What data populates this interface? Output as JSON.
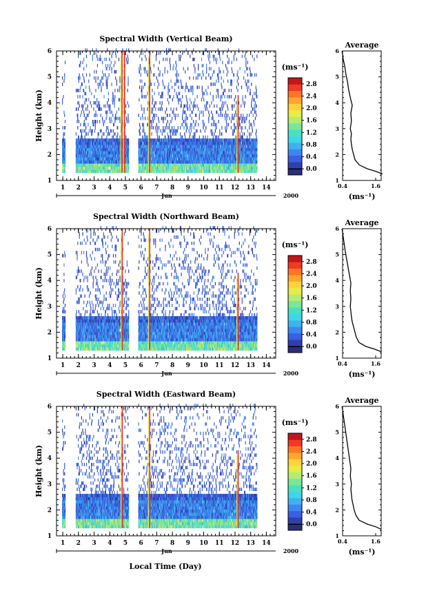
{
  "colormap": [
    "#2b2f7a",
    "#2f3fb0",
    "#3a5fe0",
    "#3d86f0",
    "#3fb2ee",
    "#3fd6e6",
    "#48e0c0",
    "#7be69a",
    "#b5ec6f",
    "#e6ec48",
    "#ffd23a",
    "#ffa62e",
    "#ff7628",
    "#f03a22",
    "#c0171c"
  ],
  "x_unit": "Jun",
  "year": "2000",
  "xlabel_bottom": "Local Time (Day)",
  "panels": [
    {
      "title": "Spectral Width (Vertical Beam)",
      "avg_title": "Average",
      "avg_unit": "(ms⁻¹)",
      "colorbar_unit": "(ms⁻¹)",
      "avg_profile": [
        [
          1.25,
          1.85
        ],
        [
          1.35,
          1.6
        ],
        [
          1.45,
          1.3
        ],
        [
          1.6,
          1.0
        ],
        [
          1.8,
          0.85
        ],
        [
          2.0,
          0.8
        ],
        [
          2.2,
          0.75
        ],
        [
          2.4,
          0.72
        ],
        [
          2.6,
          0.7
        ],
        [
          2.8,
          0.72
        ],
        [
          3.0,
          0.68
        ],
        [
          3.3,
          0.72
        ],
        [
          3.6,
          0.7
        ],
        [
          3.9,
          0.75
        ],
        [
          4.2,
          0.68
        ],
        [
          4.5,
          0.62
        ],
        [
          4.8,
          0.58
        ],
        [
          5.1,
          0.52
        ],
        [
          5.4,
          0.48
        ],
        [
          5.7,
          0.42
        ],
        [
          6.0,
          0.38
        ]
      ]
    },
    {
      "title": "Spectral Width (Northward Beam)",
      "avg_title": "Average",
      "avg_unit": "(ms⁻¹)",
      "colorbar_unit": "(ms⁻¹)",
      "avg_profile": [
        [
          1.25,
          1.8
        ],
        [
          1.35,
          1.55
        ],
        [
          1.45,
          1.25
        ],
        [
          1.6,
          1.0
        ],
        [
          1.8,
          0.9
        ],
        [
          2.0,
          0.85
        ],
        [
          2.2,
          0.8
        ],
        [
          2.4,
          0.75
        ],
        [
          2.6,
          0.72
        ],
        [
          2.8,
          0.7
        ],
        [
          3.0,
          0.68
        ],
        [
          3.3,
          0.7
        ],
        [
          3.6,
          0.68
        ],
        [
          3.9,
          0.7
        ],
        [
          4.2,
          0.65
        ],
        [
          4.5,
          0.6
        ],
        [
          4.8,
          0.55
        ],
        [
          5.1,
          0.5
        ],
        [
          5.4,
          0.46
        ],
        [
          5.7,
          0.42
        ],
        [
          6.0,
          0.38
        ]
      ]
    },
    {
      "title": "Spectral Width (Eastward Beam)",
      "avg_title": "Average",
      "avg_unit": "(ms⁻¹)",
      "colorbar_unit": "(ms⁻¹)",
      "avg_profile": [
        [
          1.25,
          1.8
        ],
        [
          1.35,
          1.6
        ],
        [
          1.45,
          1.3
        ],
        [
          1.6,
          1.0
        ],
        [
          1.8,
          0.88
        ],
        [
          2.0,
          0.82
        ],
        [
          2.2,
          0.78
        ],
        [
          2.4,
          0.74
        ],
        [
          2.6,
          0.72
        ],
        [
          2.8,
          0.7
        ],
        [
          3.0,
          0.72
        ],
        [
          3.3,
          0.68
        ],
        [
          3.6,
          0.7
        ],
        [
          3.9,
          0.66
        ],
        [
          4.2,
          0.62
        ],
        [
          4.5,
          0.58
        ],
        [
          4.8,
          0.54
        ],
        [
          5.1,
          0.5
        ],
        [
          5.4,
          0.46
        ],
        [
          5.7,
          0.42
        ],
        [
          6.0,
          0.38
        ]
      ]
    }
  ],
  "chart_data": [
    {
      "type": "heatmap",
      "title": "Spectral Width (Vertical Beam)",
      "ylabel": "Height (km)",
      "xlabel": "Jun",
      "year": "2000",
      "xlim": [
        0.6,
        14.6
      ],
      "ylim": [
        1,
        6
      ],
      "xticks": [
        "1",
        "2",
        "3",
        "4",
        "5",
        "6",
        "7",
        "8",
        "9",
        "10",
        "11",
        "12",
        "13",
        "14"
      ],
      "yticks": [
        "1",
        "2",
        "3",
        "4",
        "5",
        "6"
      ],
      "colorbar": {
        "unit": "(ms⁻¹)",
        "range": [
          -0.2,
          3.0
        ],
        "ticks": [
          "0.0",
          "0.4",
          "0.8",
          "1.2",
          "1.6",
          "2.0",
          "2.4",
          "2.8"
        ]
      },
      "data_gaps": [
        [
          1.3,
          1.8
        ],
        [
          5.2,
          5.8
        ],
        [
          13.4,
          14.6
        ]
      ],
      "dense_layer_top_km": 2.6,
      "high_width_columns": [
        4.78,
        4.95,
        6.55,
        12.2
      ]
    },
    {
      "type": "line",
      "title": "Average",
      "xlabel": "(ms⁻¹)",
      "xlim": [
        0.4,
        1.8
      ],
      "xticks": [
        "0.4",
        "1.6"
      ],
      "ylim": [
        1,
        6
      ],
      "yticks": [
        "1",
        "2",
        "3",
        "4",
        "5",
        "6"
      ]
    },
    {
      "type": "heatmap",
      "title": "Spectral Width (Northward Beam)",
      "ylabel": "Height (km)",
      "xlabel": "Jun",
      "year": "2000",
      "xlim": [
        0.6,
        14.6
      ],
      "ylim": [
        1,
        6
      ],
      "xticks": [
        "1",
        "2",
        "3",
        "4",
        "5",
        "6",
        "7",
        "8",
        "9",
        "10",
        "11",
        "12",
        "13",
        "14"
      ],
      "yticks": [
        "1",
        "2",
        "3",
        "4",
        "5",
        "6"
      ],
      "colorbar": {
        "unit": "(ms⁻¹)",
        "range": [
          -0.2,
          3.0
        ],
        "ticks": [
          "0.0",
          "0.4",
          "0.8",
          "1.2",
          "1.6",
          "2.0",
          "2.4",
          "2.8"
        ]
      },
      "data_gaps": [
        [
          1.3,
          1.8
        ],
        [
          5.2,
          5.8
        ],
        [
          13.4,
          14.6
        ]
      ],
      "dense_layer_top_km": 2.6,
      "high_width_columns": [
        4.8,
        6.55,
        12.2
      ]
    },
    {
      "type": "line",
      "title": "Average",
      "xlabel": "(ms⁻¹)",
      "xlim": [
        0.4,
        1.8
      ],
      "xticks": [
        "0.4",
        "1.6"
      ],
      "ylim": [
        1,
        6
      ],
      "yticks": [
        "1",
        "2",
        "3",
        "4",
        "5",
        "6"
      ]
    },
    {
      "type": "heatmap",
      "title": "Spectral Width (Eastward Beam)",
      "ylabel": "Height (km)",
      "xlabel": "Local Time (Day)",
      "year": "2000",
      "xlim": [
        0.6,
        14.6
      ],
      "ylim": [
        1,
        6
      ],
      "xticks": [
        "1",
        "2",
        "3",
        "4",
        "5",
        "6",
        "7",
        "8",
        "9",
        "10",
        "11",
        "12",
        "13",
        "14"
      ],
      "yticks": [
        "1",
        "2",
        "3",
        "4",
        "5",
        "6"
      ],
      "colorbar": {
        "unit": "(ms⁻¹)",
        "range": [
          -0.2,
          3.0
        ],
        "ticks": [
          "0.0",
          "0.4",
          "0.8",
          "1.2",
          "1.6",
          "2.0",
          "2.4",
          "2.8"
        ]
      },
      "data_gaps": [
        [
          1.3,
          1.8
        ],
        [
          5.2,
          5.8
        ],
        [
          13.4,
          14.6
        ]
      ],
      "dense_layer_top_km": 2.6,
      "high_width_columns": [
        4.8,
        6.55,
        12.2
      ]
    },
    {
      "type": "line",
      "title": "Average",
      "xlabel": "(ms⁻¹)",
      "xlim": [
        0.4,
        1.8
      ],
      "xticks": [
        "0.4",
        "1.6"
      ],
      "ylim": [
        1,
        6
      ],
      "yticks": [
        "1",
        "2",
        "3",
        "4",
        "5",
        "6"
      ]
    }
  ]
}
